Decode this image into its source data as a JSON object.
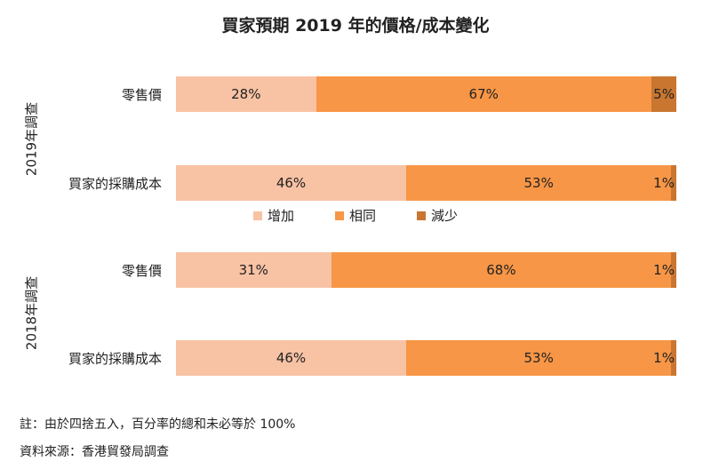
{
  "chart_data": {
    "type": "bar",
    "orientation": "horizontal",
    "stacked": true,
    "title": "買家預期 2019 年的價格/成本變化",
    "legend_position": "middle",
    "xlim": [
      0,
      100
    ],
    "series": [
      {
        "name": "增加",
        "color": "#f8c2a4"
      },
      {
        "name": "相同",
        "color": "#f79646"
      },
      {
        "name": "減少",
        "color": "#c87630"
      }
    ],
    "groups": [
      {
        "label": "2019年調查",
        "rows": [
          {
            "category": "零售價",
            "values": [
              28,
              67,
              5
            ],
            "labels": [
              "28%",
              "67%",
              "5%"
            ]
          },
          {
            "category": "買家的採購成本",
            "values": [
              46,
              53,
              1
            ],
            "labels": [
              "46%",
              "53%",
              "1%"
            ]
          }
        ]
      },
      {
        "label": "2018年調查",
        "rows": [
          {
            "category": "零售價",
            "values": [
              31,
              68,
              1
            ],
            "labels": [
              "31%",
              "68%",
              "1%"
            ]
          },
          {
            "category": "買家的採購成本",
            "values": [
              46,
              53,
              1
            ],
            "labels": [
              "46%",
              "53%",
              "1%"
            ]
          }
        ]
      }
    ]
  },
  "notes": {
    "note1": "註：由於四捨五入，百分率的總和未必等於 100%",
    "source": "資料來源：香港貿發局調查"
  }
}
